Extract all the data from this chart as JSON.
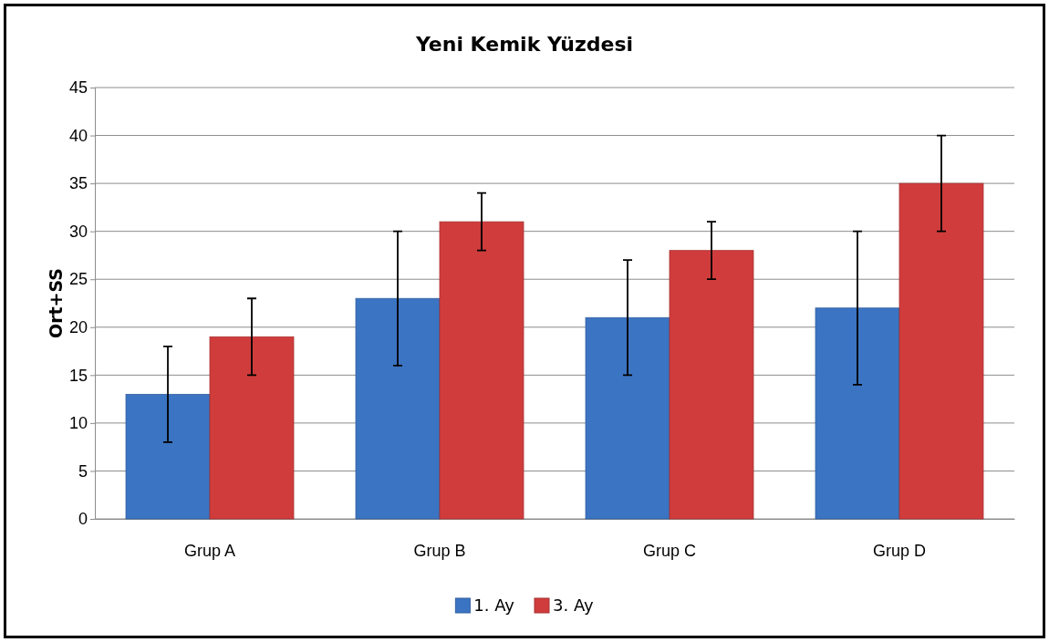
{
  "chart_data": {
    "type": "bar",
    "title": "Yeni Kemik Yüzdesi",
    "ylabel": "Ort+SS",
    "categories": [
      "Grup A",
      "Grup B",
      "Grup C",
      "Grup D"
    ],
    "series": [
      {
        "name": "1. Ay",
        "color": "#3b74c2",
        "values": [
          13,
          23,
          21,
          22
        ],
        "errors": [
          5,
          7,
          6,
          8
        ]
      },
      {
        "name": "3. Ay",
        "color": "#d03c3c",
        "values": [
          19,
          31,
          28,
          35
        ],
        "errors": [
          4,
          3,
          3,
          5
        ]
      }
    ],
    "ylim": [
      0,
      45
    ],
    "yticks": [
      0,
      5,
      10,
      15,
      20,
      25,
      30,
      35,
      40,
      45
    ],
    "grid": "y",
    "legend": "bottom"
  }
}
